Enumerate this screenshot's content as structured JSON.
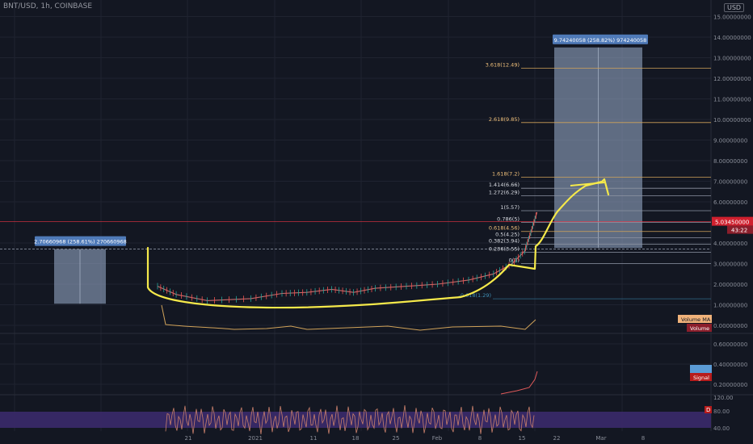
{
  "header": {
    "title": "BNT/USD, 1h, COINBASE"
  },
  "currency_button": "USD",
  "colors": {
    "background": "#131722",
    "grid": "#1f2330",
    "axis_text": "#8a8e99",
    "fib_line": "#d1a35a",
    "fib_gray": "#8e94a3",
    "red_line": "#f23645",
    "yellow_drawing": "#f5e94a",
    "box_fill": "#9fb3d1",
    "label_fill": "#4f7ab8",
    "volume_ma": "#d1a35a",
    "volume_label_bg": "#f0b27a",
    "volume_label2_bg": "#8b1e2b",
    "signal_bg": "#b81c1c",
    "rsi_band": "#3b2a6b",
    "rsi_line": "#c87f6b",
    "macd_blue": "#5b9bd5"
  },
  "chart_data": {
    "type": "candlestick",
    "title": "BNT/USD, 1h, COINBASE",
    "price_axis": {
      "ticks": [
        "15.00000000",
        "14.00000000",
        "13.00000000",
        "12.00000000",
        "11.00000000",
        "10.00000000",
        "9.00000000",
        "8.00000000",
        "7.00000000",
        "6.00000000",
        "4.00000000",
        "3.00000000",
        "2.00000000",
        "1.00000000",
        "0.00000000"
      ],
      "tick_values": [
        15,
        14,
        13,
        12,
        11,
        10,
        9,
        8,
        7,
        6,
        4,
        3,
        2,
        1,
        0
      ],
      "range": [
        0,
        15.5
      ]
    },
    "time_axis": {
      "labels": [
        "21",
        "2021",
        "11",
        "18",
        "25",
        "Feb",
        "8",
        "15",
        "22",
        "Mar",
        "8"
      ]
    },
    "current_price": {
      "label": "5.03450000",
      "countdown": "43:22",
      "value": 5.0345
    },
    "price_series": [
      {
        "t": 0,
        "v": 1.9
      },
      {
        "t": 6,
        "v": 1.5
      },
      {
        "t": 16,
        "v": 1.2
      },
      {
        "t": 30,
        "v": 1.3
      },
      {
        "t": 40,
        "v": 1.55
      },
      {
        "t": 48,
        "v": 1.6
      },
      {
        "t": 56,
        "v": 1.75
      },
      {
        "t": 63,
        "v": 1.6
      },
      {
        "t": 70,
        "v": 1.8
      },
      {
        "t": 80,
        "v": 1.9
      },
      {
        "t": 90,
        "v": 2.0
      },
      {
        "t": 100,
        "v": 2.2
      },
      {
        "t": 108,
        "v": 2.5
      },
      {
        "t": 114,
        "v": 3.0
      },
      {
        "t": 118,
        "v": 3.6
      },
      {
        "t": 120,
        "v": 4.5
      },
      {
        "t": 122,
        "v": 5.5
      }
    ],
    "fib_levels": [
      {
        "label": "3.618(12.49)",
        "value": 12.49
      },
      {
        "label": "2.618(9.85)",
        "value": 9.85
      },
      {
        "label": "1.618(7.2)",
        "value": 7.2
      },
      {
        "label": "1.414(6.66)",
        "value": 6.66
      },
      {
        "label": "1.272(6.29)",
        "value": 6.29
      },
      {
        "label": "1(5.57)",
        "value": 5.57
      },
      {
        "label": "0.786(5)",
        "value": 5.0
      },
      {
        "label": "0.618(4.56)",
        "value": 4.56
      },
      {
        "label": "0.5(4.25)",
        "value": 4.25
      },
      {
        "label": "0.382(3.94)",
        "value": 3.94
      },
      {
        "label": "0.236(3.55)",
        "value": 3.55
      },
      {
        "label": "0(3)",
        "value": 3.0
      },
      {
        "label": "-0.618(1.29)",
        "value": 1.29
      }
    ],
    "measure_boxes": [
      {
        "label": "2.70660968 (258.61%) 270660968",
        "from": 1.05,
        "to": 3.7
      },
      {
        "label": "9.74240058 (258.82%) 974240058",
        "from": 3.76,
        "to": 13.5
      }
    ],
    "volume_label": "Volume MA",
    "volume_label_2": "Volume",
    "macd_axis": [
      "0.60000000",
      "0.40000000",
      "0.20000000"
    ],
    "macd_signal_label": "Signal",
    "rsi_axis": [
      "120.00",
      "80.00",
      "40.00"
    ],
    "rsi_badge": "D"
  }
}
